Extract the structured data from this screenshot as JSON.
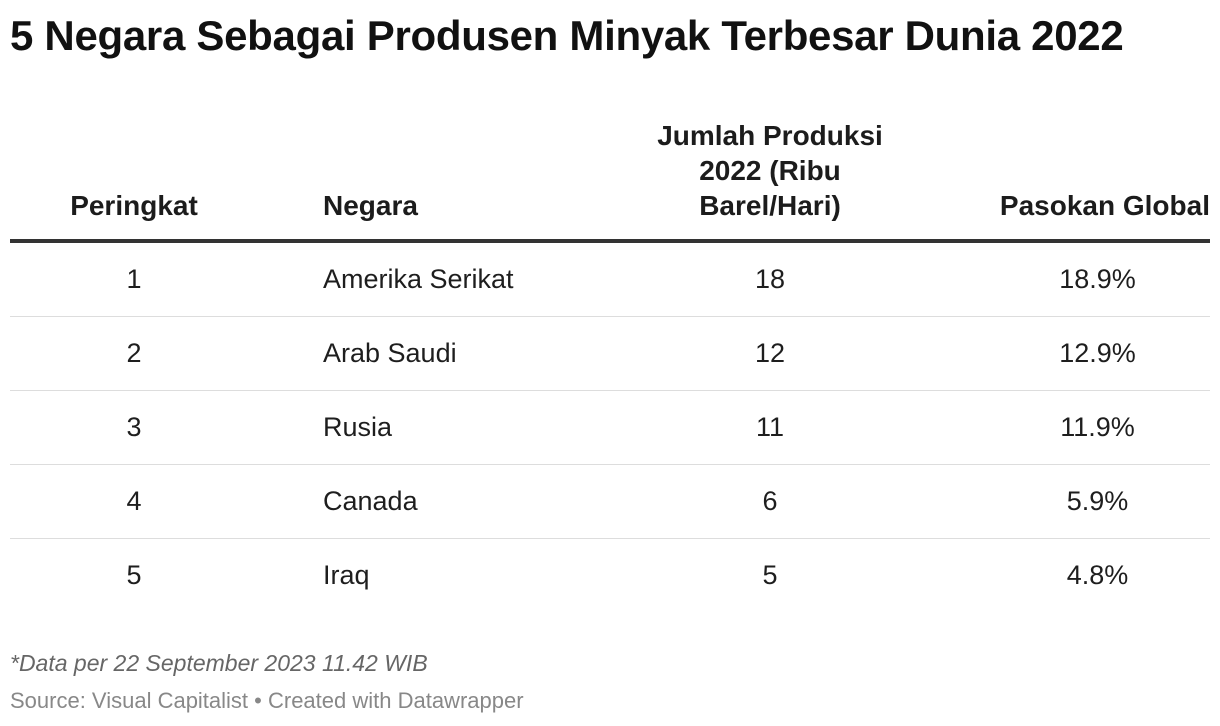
{
  "title": "5 Negara Sebagai Produsen Minyak Terbesar Dunia 2022",
  "table": {
    "headers": {
      "rank": "Peringkat",
      "country": "Negara",
      "production_line1": "Jumlah Produksi",
      "production_line2": "2022 (Ribu",
      "production_line3": "Barel/Hari)",
      "share": "Pasokan Global"
    },
    "rows": [
      {
        "rank": "1",
        "country": "Amerika Serikat",
        "production": "18",
        "share": "18.9%"
      },
      {
        "rank": "2",
        "country": "Arab Saudi",
        "production": "12",
        "share": "12.9%"
      },
      {
        "rank": "3",
        "country": "Rusia",
        "production": "11",
        "share": "11.9%"
      },
      {
        "rank": "4",
        "country": "Canada",
        "production": "6",
        "share": "5.9%"
      },
      {
        "rank": "5",
        "country": "Iraq",
        "production": "5",
        "share": "4.8%"
      }
    ]
  },
  "chart_data": {
    "type": "table",
    "title": "5 Negara Sebagai Produsen Minyak Terbesar Dunia 2022",
    "columns": [
      "Peringkat",
      "Negara",
      "Jumlah Produksi 2022 (Ribu Barel/Hari)",
      "Pasokan Global"
    ],
    "categories": [
      "Amerika Serikat",
      "Arab Saudi",
      "Rusia",
      "Canada",
      "Iraq"
    ],
    "series": [
      {
        "name": "Jumlah Produksi 2022 (Ribu Barel/Hari)",
        "values": [
          18,
          12,
          11,
          6,
          5
        ]
      },
      {
        "name": "Pasokan Global",
        "values": [
          18.9,
          12.9,
          11.9,
          5.9,
          4.8
        ]
      }
    ]
  },
  "note": "*Data per 22 September 2023 11.42 WIB",
  "footer": {
    "source": "Source: Visual Capitalist • Created with Datawrapper"
  }
}
